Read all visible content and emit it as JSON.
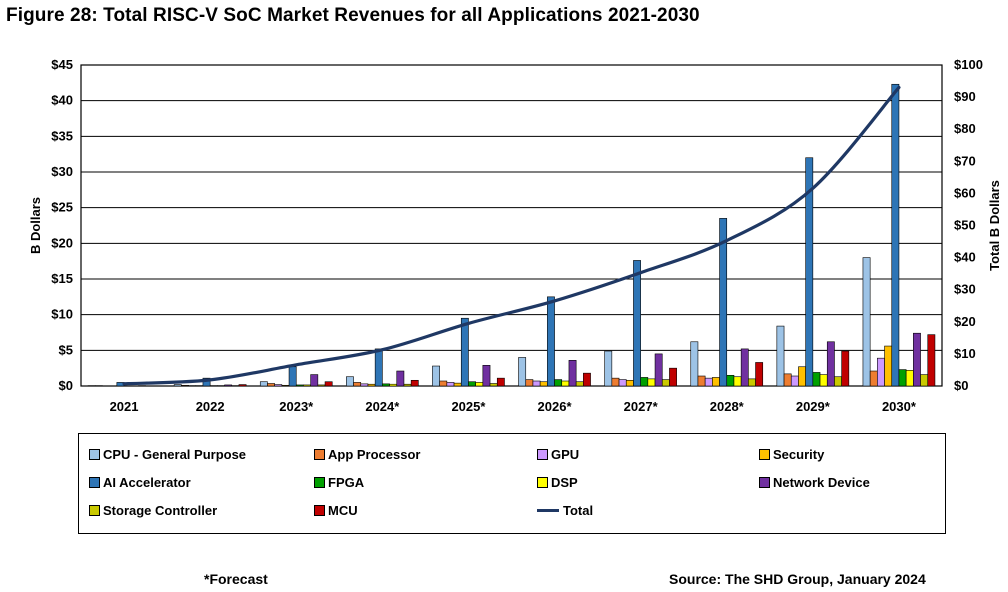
{
  "figure": {
    "title": "Figure 28: Total RISC-V SoC Market Revenues for all Applications 2021-2030",
    "forecast_note": "*Forecast",
    "source": "Source: The SHD Group, January 2024"
  },
  "chart_data": {
    "type": "bar",
    "subtype": "grouped bar with total line on secondary axis",
    "title": "Figure 28: Total RISC-V SoC Market Revenues for all Applications 2021-2030",
    "categories": [
      "2021",
      "2022",
      "2023*",
      "2024*",
      "2025*",
      "2026*",
      "2027*",
      "2028*",
      "2029*",
      "2030*"
    ],
    "ylabel": "B Dollars",
    "y2label": "Total B Dollars",
    "ylim": [
      0,
      45
    ],
    "y2lim": [
      0,
      100
    ],
    "yticks": [
      "$0",
      "$5",
      "$10",
      "$15",
      "$20",
      "$25",
      "$30",
      "$35",
      "$40",
      "$45"
    ],
    "y2ticks": [
      "$0",
      "$10",
      "$20",
      "$30",
      "$40",
      "$50",
      "$60",
      "$70",
      "$80",
      "$90",
      "$100"
    ],
    "grid": "horizontal",
    "legend_position": "bottom",
    "series": [
      {
        "name": "CPU - General Purpose",
        "color": "#9DC3E6",
        "values": [
          0.05,
          0.2,
          0.6,
          1.3,
          2.8,
          4.0,
          4.9,
          6.2,
          8.4,
          18.0
        ]
      },
      {
        "name": "App Processor",
        "color": "#ED7D31",
        "values": [
          0.05,
          0.1,
          0.35,
          0.5,
          0.7,
          0.9,
          1.1,
          1.4,
          1.7,
          2.1
        ]
      },
      {
        "name": "GPU",
        "color": "#CC99FF",
        "values": [
          0.0,
          0.05,
          0.2,
          0.3,
          0.5,
          0.7,
          0.9,
          1.1,
          1.4,
          3.9
        ]
      },
      {
        "name": "Security",
        "color": "#FFC000",
        "values": [
          0.0,
          0.05,
          0.1,
          0.25,
          0.4,
          0.6,
          0.8,
          1.2,
          2.7,
          5.6
        ]
      },
      {
        "name": "AI Accelerator",
        "color": "#2E75B6",
        "values": [
          0.5,
          1.1,
          2.7,
          5.2,
          9.5,
          12.5,
          17.6,
          23.5,
          32.0,
          42.3
        ]
      },
      {
        "name": "FPGA",
        "color": "#00A000",
        "values": [
          0.0,
          0.05,
          0.15,
          0.3,
          0.6,
          0.9,
          1.2,
          1.5,
          1.9,
          2.3
        ]
      },
      {
        "name": "DSP",
        "color": "#FFFF00",
        "values": [
          0.0,
          0.05,
          0.15,
          0.25,
          0.5,
          0.7,
          1.0,
          1.3,
          1.6,
          2.2
        ]
      },
      {
        "name": "Network Device",
        "color": "#7030A0",
        "values": [
          0.05,
          0.15,
          1.6,
          2.1,
          2.9,
          3.6,
          4.5,
          5.2,
          6.2,
          7.4
        ]
      },
      {
        "name": "Storage Controller",
        "color": "#C9C900",
        "values": [
          0.0,
          0.05,
          0.15,
          0.25,
          0.35,
          0.6,
          0.9,
          1.0,
          1.3,
          1.6
        ]
      },
      {
        "name": "MCU",
        "color": "#C00000",
        "values": [
          0.0,
          0.2,
          0.6,
          0.8,
          1.1,
          1.8,
          2.5,
          3.3,
          4.9,
          7.2
        ]
      }
    ],
    "total_series": {
      "name": "Total",
      "color": "#1F3864",
      "axis": "secondary",
      "values": [
        0.7,
        1.9,
        6.6,
        11.3,
        19.5,
        26.5,
        35.3,
        45.3,
        61.6,
        93.0
      ]
    }
  },
  "legend": {
    "items": [
      {
        "name": "CPU - General Purpose",
        "color": "#9DC3E6",
        "kind": "box"
      },
      {
        "name": "App Processor",
        "color": "#ED7D31",
        "kind": "box"
      },
      {
        "name": "GPU",
        "color": "#CC99FF",
        "kind": "box"
      },
      {
        "name": "Security",
        "color": "#FFC000",
        "kind": "box"
      },
      {
        "name": "AI Accelerator",
        "color": "#2E75B6",
        "kind": "box"
      },
      {
        "name": "FPGA",
        "color": "#00A000",
        "kind": "box"
      },
      {
        "name": "DSP",
        "color": "#FFFF00",
        "kind": "box"
      },
      {
        "name": "Network Device",
        "color": "#7030A0",
        "kind": "box"
      },
      {
        "name": "Storage Controller",
        "color": "#C9C900",
        "kind": "box"
      },
      {
        "name": "MCU",
        "color": "#C00000",
        "kind": "box"
      },
      {
        "name": "Total",
        "color": "#1F3864",
        "kind": "line"
      }
    ]
  }
}
